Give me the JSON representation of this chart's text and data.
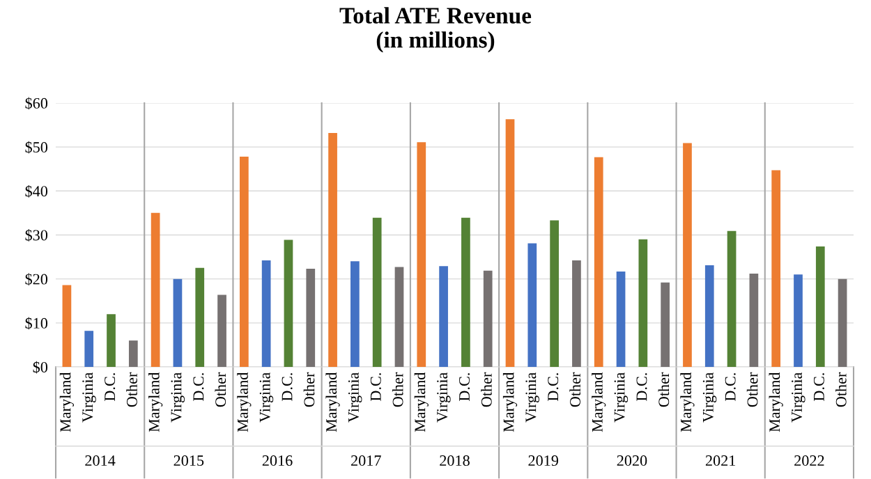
{
  "chart_data": {
    "type": "bar",
    "title": "Total ATE Revenue\n(in millions)",
    "categories": [
      "2014",
      "2015",
      "2016",
      "2017",
      "2018",
      "2019",
      "2020",
      "2021",
      "2022"
    ],
    "series": [
      {
        "name": "Maryland",
        "color": "#ed7d31",
        "values": [
          18.6,
          35,
          47.8,
          53.2,
          51.1,
          56.3,
          47.7,
          50.9,
          44.7
        ]
      },
      {
        "name": "Virginia",
        "color": "#4472c4",
        "values": [
          8.2,
          20,
          24.2,
          24,
          22.9,
          28.1,
          21.7,
          23.1,
          21
        ]
      },
      {
        "name": "D.C.",
        "color": "#548235",
        "values": [
          12,
          22.5,
          28.9,
          33.9,
          33.9,
          33.3,
          29,
          30.9,
          27.4
        ]
      },
      {
        "name": "Other",
        "color": "#767171",
        "values": [
          6,
          16.4,
          22.3,
          22.7,
          21.9,
          24.2,
          19.2,
          21.2,
          20
        ]
      }
    ],
    "ylim": [
      0,
      60
    ],
    "yticks": [
      {
        "value": 0,
        "label": "$0"
      },
      {
        "value": 10,
        "label": "$10"
      },
      {
        "value": 20,
        "label": "$20"
      },
      {
        "value": 30,
        "label": "$30"
      },
      {
        "value": 40,
        "label": "$40"
      },
      {
        "value": 50,
        "label": "$50"
      },
      {
        "value": 60,
        "label": "$60"
      }
    ],
    "grid": "y",
    "legend": false
  }
}
